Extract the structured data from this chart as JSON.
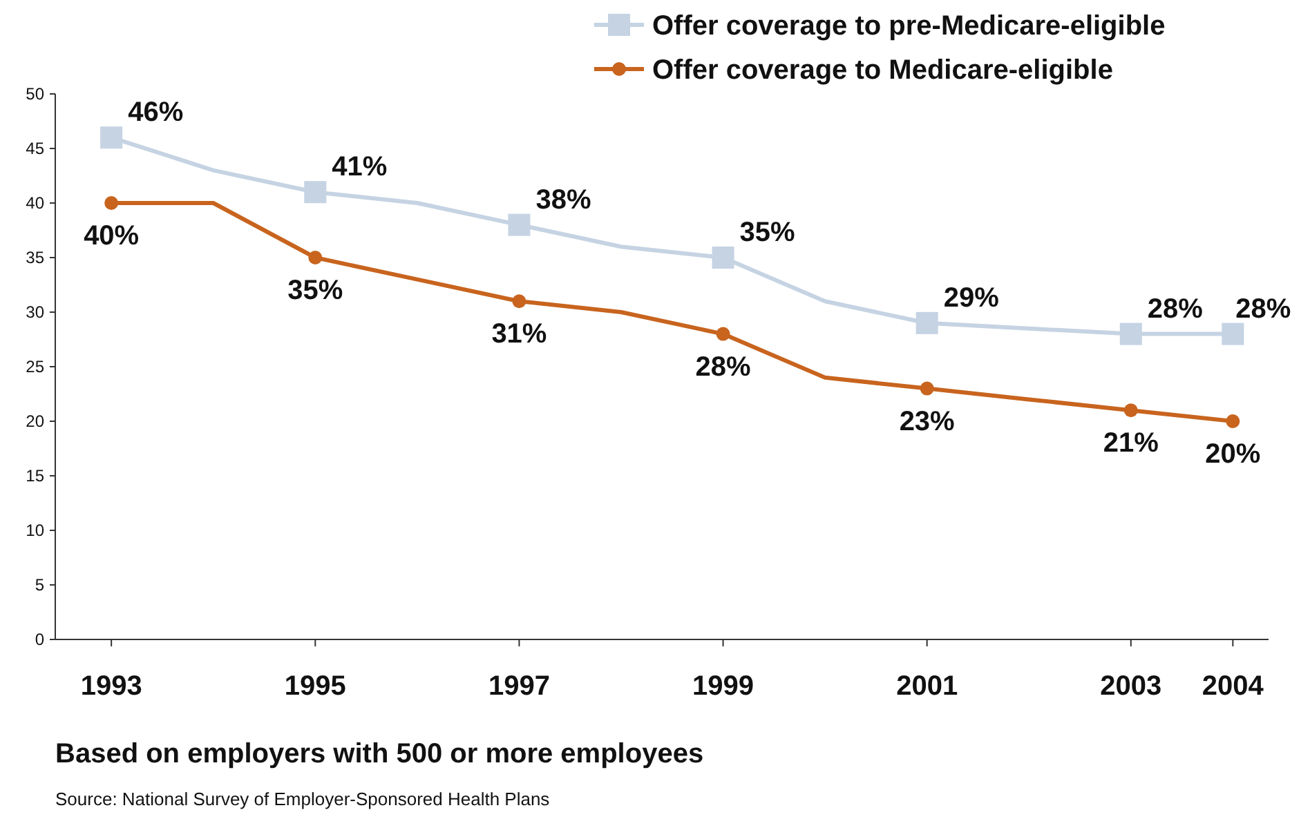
{
  "chart_data": {
    "type": "line",
    "x": [
      1993,
      1994,
      1995,
      1996,
      1997,
      1998,
      1999,
      2000,
      2001,
      2002,
      2003,
      2004
    ],
    "series": [
      {
        "name": "Offer coverage to pre-Medicare-eligible",
        "color": "#c5d3e3",
        "marker": "square",
        "values": [
          46,
          43,
          41,
          40,
          38,
          36,
          35,
          31,
          29,
          28.5,
          28,
          28
        ],
        "value_labels": [
          "46%",
          null,
          "41%",
          null,
          "38%",
          null,
          "35%",
          null,
          "29%",
          null,
          "28%",
          "28%"
        ]
      },
      {
        "name": "Offer coverage to Medicare-eligible",
        "color": "#c8641e",
        "marker": "circle",
        "values": [
          40,
          40,
          35,
          33,
          31,
          30,
          28,
          24,
          23,
          22,
          21,
          20
        ],
        "value_labels": [
          "40%",
          null,
          "35%",
          null,
          "31%",
          null,
          "28%",
          null,
          "23%",
          null,
          "21%",
          "20%"
        ]
      }
    ],
    "xlim": [
      1992.45,
      2004.35
    ],
    "xticks": [
      1993,
      1995,
      1997,
      1999,
      2001,
      2003,
      2004
    ],
    "ylim": [
      0,
      50
    ],
    "yticks": [
      0,
      5,
      10,
      15,
      20,
      25,
      30,
      35,
      40,
      45,
      50
    ],
    "grid": false,
    "legend": "top right",
    "line_style": "solid",
    "annotations": [
      "Based on employers with 500 or more employees",
      "Source: National Survey of Employer-Sponsored Health Plans"
    ]
  }
}
